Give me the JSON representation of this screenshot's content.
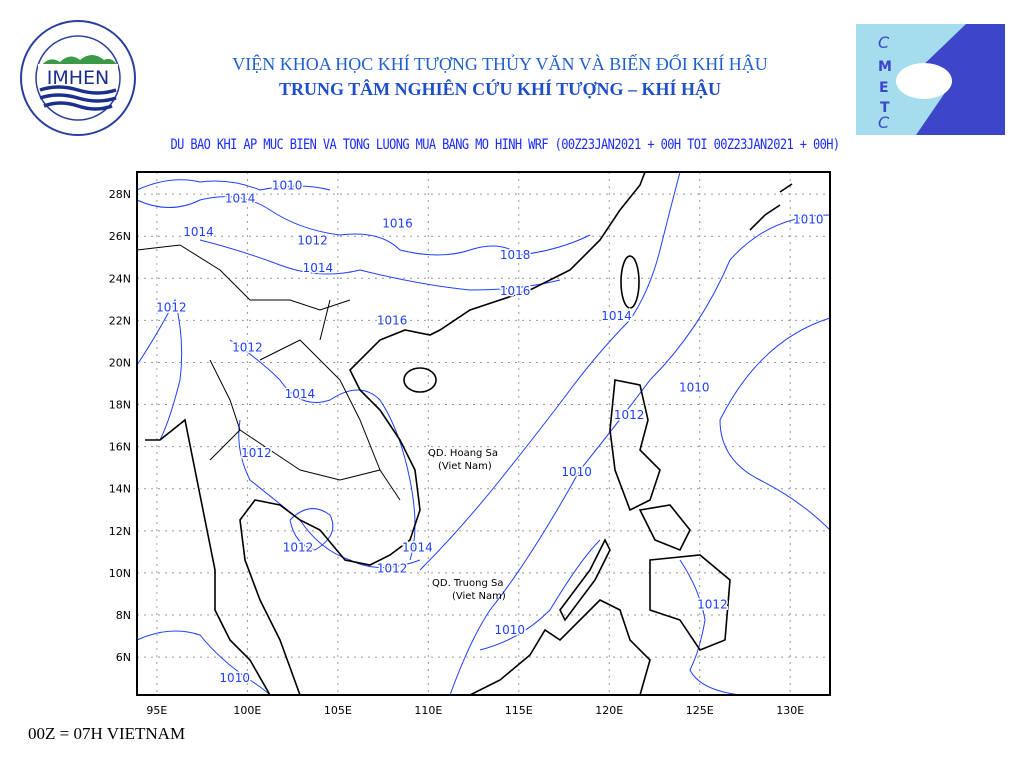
{
  "header": {
    "institute": "VIỆN KHOA HỌC KHÍ TƯỢNG THỦY VĂN VÀ BIẾN ĐỔI KHÍ HẬU",
    "center": "TRUNG TÂM NGHIÊN CỨU KHÍ TƯỢNG – KHÍ HẬU",
    "map_title": "DU BAO KHI AP MUC BIEN VA TONG LUONG MUA BANG MO HINH WRF (00Z23JAN2021 + 00H TOI 00Z23JAN2021 + 00H)"
  },
  "logos": {
    "left": {
      "text": "IMHEN",
      "ring_text": "VIỆN KHOA HỌC KHÍ TƯỢNG THỦY VĂN VÀ BIẾN ĐỔI KHÍ HẬU"
    },
    "right": {
      "text": "CMETC"
    }
  },
  "footer": {
    "note": "00Z = 07H VIETNAM"
  },
  "map": {
    "lon_range": [
      93.9,
      132.2
    ],
    "lat_range": [
      4.2,
      29.05
    ],
    "lon_ticks": [
      "95E",
      "100E",
      "105E",
      "110E",
      "115E",
      "120E",
      "125E",
      "130E"
    ],
    "lat_ticks": [
      "6N",
      "8N",
      "10N",
      "12N",
      "14N",
      "16N",
      "18N",
      "20N",
      "22N",
      "24N",
      "26N",
      "28N"
    ],
    "grid": "dotted",
    "contour_color": "#2040ff",
    "coast_color": "#000000",
    "place_labels": [
      {
        "line1": "QD. Hoang Sa",
        "line2": "(Viet Nam)"
      },
      {
        "line1": "QD. Truong Sa",
        "line2": "(Viet Nam)"
      }
    ],
    "isobar_labels": [
      {
        "value": "1010",
        "lon": 102.2,
        "lat": 28.4
      },
      {
        "value": "1014",
        "lon": 99.6,
        "lat": 27.8
      },
      {
        "value": "1014",
        "lon": 97.3,
        "lat": 26.2
      },
      {
        "value": "1012",
        "lon": 103.6,
        "lat": 25.8
      },
      {
        "value": "1016",
        "lon": 108.3,
        "lat": 26.6
      },
      {
        "value": "1014",
        "lon": 103.9,
        "lat": 24.5
      },
      {
        "value": "1018",
        "lon": 114.8,
        "lat": 25.1
      },
      {
        "value": "1016",
        "lon": 114.8,
        "lat": 23.4
      },
      {
        "value": "1012",
        "lon": 95.8,
        "lat": 22.6
      },
      {
        "value": "1016",
        "lon": 108.0,
        "lat": 22.0
      },
      {
        "value": "1014",
        "lon": 120.4,
        "lat": 22.2
      },
      {
        "value": "1010",
        "lon": 131.0,
        "lat": 26.8
      },
      {
        "value": "1012",
        "lon": 100.0,
        "lat": 20.7
      },
      {
        "value": "1014",
        "lon": 102.9,
        "lat": 18.5
      },
      {
        "value": "1010",
        "lon": 124.7,
        "lat": 18.8
      },
      {
        "value": "1012",
        "lon": 121.1,
        "lat": 17.5
      },
      {
        "value": "1012",
        "lon": 100.5,
        "lat": 15.7
      },
      {
        "value": "1010",
        "lon": 118.2,
        "lat": 14.8
      },
      {
        "value": "1014",
        "lon": 109.4,
        "lat": 11.2
      },
      {
        "value": "1012",
        "lon": 102.8,
        "lat": 11.2
      },
      {
        "value": "1012",
        "lon": 108.0,
        "lat": 10.2
      },
      {
        "value": "1012",
        "lon": 125.7,
        "lat": 8.5
      },
      {
        "value": "1010",
        "lon": 114.5,
        "lat": 7.3
      },
      {
        "value": "1010",
        "lon": 99.3,
        "lat": 5.0
      }
    ]
  }
}
